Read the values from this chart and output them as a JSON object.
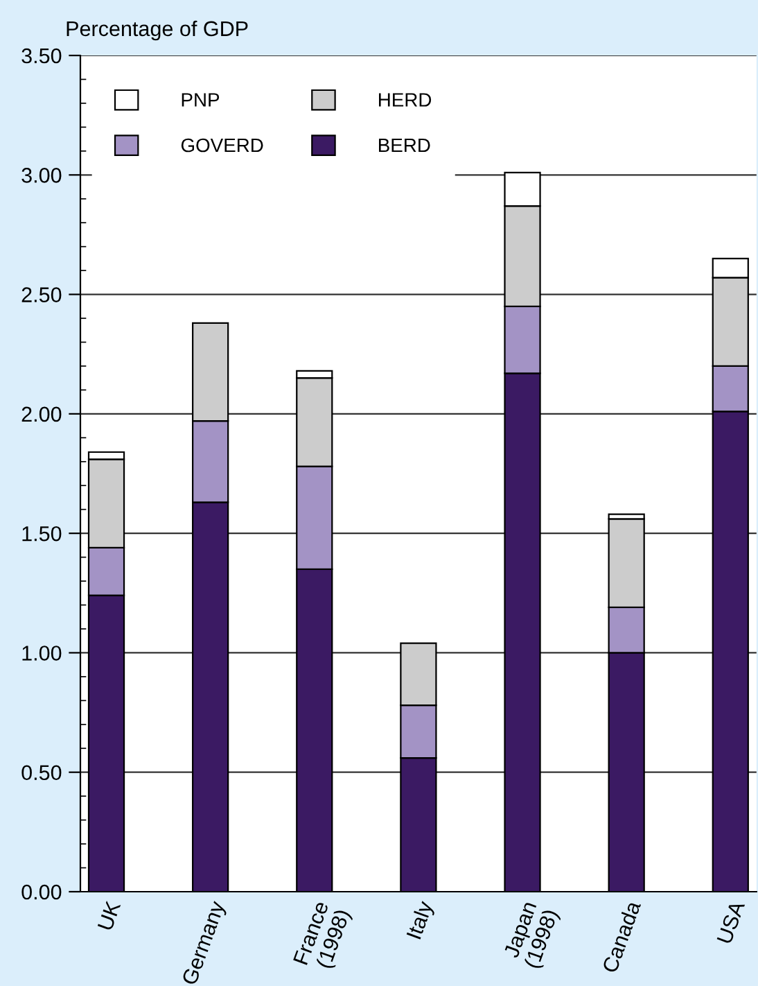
{
  "chart_data": {
    "type": "bar",
    "stacked": true,
    "title": "Percentage of GDP",
    "categories": [
      "UK",
      "Germany",
      "France\n(1998)",
      "Italy",
      "Japan\n(1998)",
      "Canada",
      "USA"
    ],
    "series": [
      {
        "name": "BERD",
        "color": "#3b1a63",
        "values": [
          1.24,
          1.63,
          1.35,
          0.56,
          2.17,
          1.0,
          2.01
        ]
      },
      {
        "name": "GOVERD",
        "color": "#a393c5",
        "values": [
          0.2,
          0.34,
          0.43,
          0.22,
          0.28,
          0.19,
          0.19
        ]
      },
      {
        "name": "HERD",
        "color": "#cccccc",
        "values": [
          0.37,
          0.41,
          0.37,
          0.26,
          0.42,
          0.37,
          0.37
        ]
      },
      {
        "name": "PNP",
        "color": "#ffffff",
        "values": [
          0.03,
          null,
          0.03,
          null,
          0.14,
          0.02,
          0.08
        ]
      }
    ],
    "ylim": [
      0,
      3.5
    ],
    "yticks": [
      {
        "value": 0,
        "label": "0.00"
      },
      {
        "value": 0.5,
        "label": "0.50"
      },
      {
        "value": 1,
        "label": "1.00"
      },
      {
        "value": 1.5,
        "label": "1.50"
      },
      {
        "value": 2,
        "label": "2.00"
      },
      {
        "value": 2.5,
        "label": "2.50"
      },
      {
        "value": 3,
        "label": "3.00"
      },
      {
        "value": 3.5,
        "label": "3.50"
      }
    ],
    "grid": "y",
    "legend": "top left"
  }
}
